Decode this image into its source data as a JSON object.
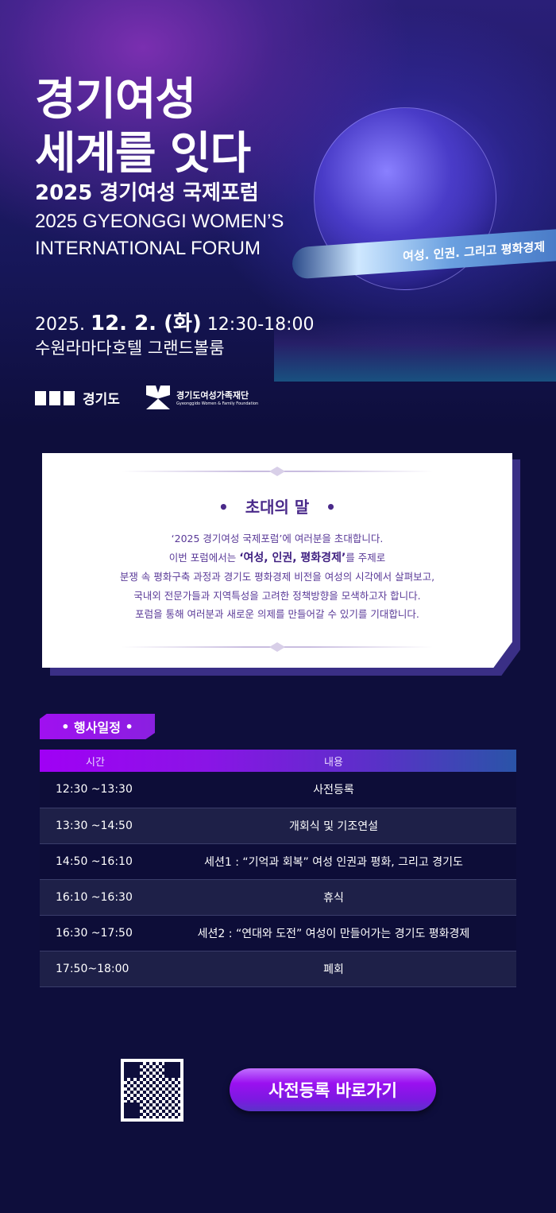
{
  "hero": {
    "title_line1": "경기여성",
    "title_line2": "세계를 잇다",
    "subtitle": "2025 경기여성 국제포럼",
    "english_line1": "2025 GYEONGGI WOMEN’S",
    "english_line2": "INTERNATIONAL FORUM",
    "ribbon": "여성. 인권. 그리고 평화경제",
    "date_year": "2025.",
    "date_day": "12. 2. (화)",
    "time": "12:30-18:00",
    "venue": "수원라마다호텔 그랜드볼룸",
    "logo1": "경기도",
    "logo2_name": "경기도여성가족재단",
    "logo2_en": "Gyeonggido Women & Family Foundation"
  },
  "invitation": {
    "heading": "초대의 말",
    "line1": "‘2025 경기여성 국제포럼’에 여러분을 초대합니다.",
    "line2_pre": "이번 포럼에서는 ",
    "line2_bold": "‘여성, 인권, 평화경제’",
    "line2_post": "를 주제로",
    "line3": "분쟁 속 평화구축 과정과 경기도 평화경제 비전을 여성의 시각에서 살펴보고,",
    "line4": "국내외 전문가들과 지역특성을 고려한 정책방향을 모색하고자 합니다.",
    "line5": "포럼을 통해 여러분과 새로운 의제를 만들어갈 수 있기를 기대합니다."
  },
  "schedule": {
    "label": "행사일정",
    "headers": [
      "시간",
      "내용"
    ],
    "rows": [
      {
        "time": "12:30 ~13:30",
        "content": "사전등록"
      },
      {
        "time": "13:30 ~14:50",
        "content": "개회식 및 기조연설"
      },
      {
        "time": "14:50 ~16:10",
        "content": "세션1 : “기억과 회복” 여성 인권과 평화, 그리고 경기도"
      },
      {
        "time": "16:10 ~16:30",
        "content": "휴식"
      },
      {
        "time": "16:30 ~17:50",
        "content": "세션2 : “연대와 도전” 여성이 만들어가는 경기도 평화경제"
      },
      {
        "time": "17:50~18:00",
        "content": "폐회"
      }
    ]
  },
  "cta": {
    "register_label": "사전등록 바로가기"
  },
  "colors": {
    "accent": "#9a10f0",
    "background": "#0e0e3c",
    "card_text": "#4a2a8a"
  }
}
